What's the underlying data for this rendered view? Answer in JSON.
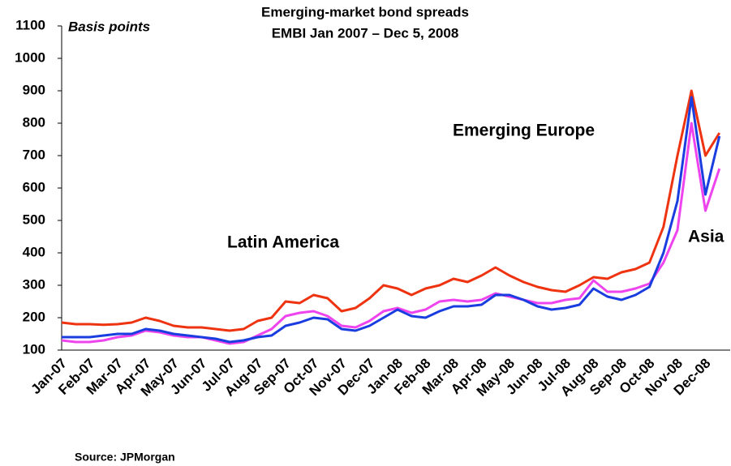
{
  "chart_data": {
    "type": "line",
    "title": "Emerging-market bond spreads",
    "subtitle": "EMBI Jan 2007 – Dec 5, 2008",
    "y_label": "Basis points",
    "source": "Source: JPMorgan",
    "categories": [
      "Jan-07",
      null,
      "Feb-07",
      null,
      "Mar-07",
      null,
      "Apr-07",
      null,
      "May-07",
      null,
      "Jun-07",
      null,
      "Jul-07",
      null,
      "Aug-07",
      null,
      "Sep-07",
      null,
      "Oct-07",
      null,
      "Nov-07",
      null,
      "Dec-07",
      null,
      "Jan-08",
      null,
      "Feb-08",
      null,
      "Mar-08",
      null,
      "Apr-08",
      null,
      "May-08",
      null,
      "Jun-08",
      null,
      "Jul-08",
      null,
      "Aug-08",
      null,
      "Sep-08",
      null,
      "Oct-08",
      null,
      "Nov-08",
      null,
      "Dec-08",
      null
    ],
    "series": [
      {
        "name": "Latin America",
        "color": "#ee3311",
        "values": [
          185,
          180,
          180,
          178,
          180,
          185,
          200,
          190,
          175,
          170,
          170,
          165,
          160,
          165,
          190,
          200,
          250,
          245,
          270,
          260,
          220,
          230,
          260,
          300,
          290,
          270,
          290,
          300,
          320,
          310,
          330,
          355,
          330,
          310,
          295,
          285,
          280,
          300,
          325,
          320,
          340,
          350,
          370,
          480,
          700,
          900,
          700,
          770
        ]
      },
      {
        "name": "Asia",
        "color": "#ee44ee",
        "values": [
          130,
          125,
          125,
          130,
          140,
          145,
          160,
          155,
          145,
          140,
          140,
          130,
          120,
          125,
          145,
          165,
          205,
          215,
          220,
          205,
          175,
          170,
          190,
          220,
          230,
          215,
          225,
          250,
          255,
          250,
          255,
          275,
          265,
          255,
          245,
          245,
          255,
          260,
          315,
          280,
          280,
          290,
          305,
          370,
          470,
          800,
          530,
          660
        ]
      },
      {
        "name": "Emerging Europe",
        "color": "#1a3de0",
        "values": [
          140,
          140,
          140,
          145,
          150,
          150,
          165,
          160,
          150,
          145,
          140,
          135,
          125,
          130,
          140,
          145,
          175,
          185,
          200,
          195,
          165,
          160,
          175,
          200,
          225,
          205,
          200,
          220,
          235,
          235,
          240,
          270,
          270,
          255,
          235,
          225,
          230,
          240,
          290,
          265,
          255,
          270,
          295,
          400,
          560,
          880,
          580,
          760
        ]
      }
    ],
    "ylim": [
      100,
      1100
    ],
    "yticks": [
      100,
      200,
      300,
      400,
      500,
      600,
      700,
      800,
      900,
      1000,
      1100
    ],
    "grid": false
  }
}
